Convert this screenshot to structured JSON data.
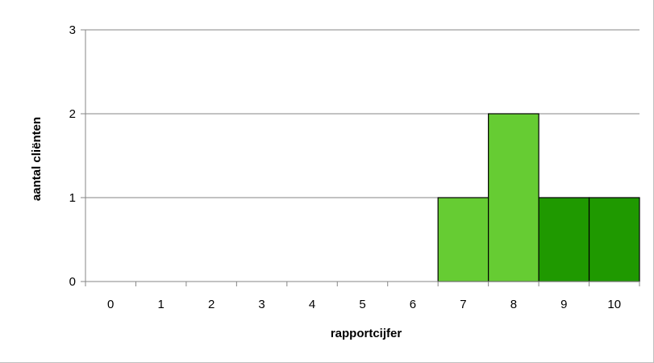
{
  "chart_data": {
    "type": "bar",
    "title": "",
    "xlabel": "rapportcijfer",
    "ylabel": "aantal cliënten",
    "categories": [
      "0",
      "1",
      "2",
      "3",
      "4",
      "5",
      "6",
      "7",
      "8",
      "9",
      "10"
    ],
    "values": [
      0,
      0,
      0,
      0,
      0,
      0,
      0,
      1,
      2,
      1,
      1
    ],
    "bar_colors": [
      "#66cc33",
      "#66cc33",
      "#66cc33",
      "#66cc33",
      "#66cc33",
      "#66cc33",
      "#66cc33",
      "#66cc33",
      "#66cc33",
      "#1f9900",
      "#1f9900"
    ],
    "yticks": [
      0,
      1,
      2,
      3
    ],
    "ylim": [
      0,
      3
    ],
    "grid": true,
    "legend": "none"
  }
}
